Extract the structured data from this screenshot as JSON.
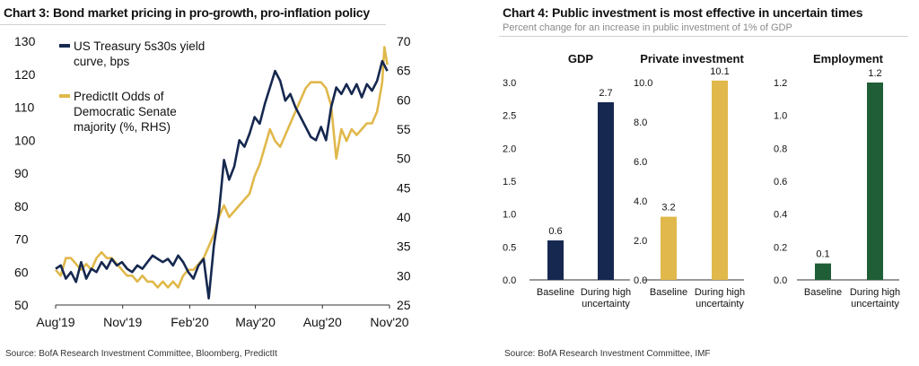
{
  "left": {
    "title": "Chart 3: Bond market pricing in pro-growth, pro-inflation policy",
    "source": "Source: BofA Research Investment Committee, Bloomberg, PredictIt"
  },
  "right": {
    "title": "Chart 4: Public investment is most effective in uncertain times",
    "subtitle": "Percent change for an increase in public investment of 1% of GDP",
    "source": "Source: BofA Research Investment Committee, IMF"
  },
  "chart_data": [
    {
      "type": "line",
      "title": "Chart 3: Bond market pricing in pro-growth, pro-inflation policy",
      "x_ticks": [
        "Aug'19",
        "Nov'19",
        "Feb'20",
        "May'20",
        "Aug'20",
        "Nov'20"
      ],
      "ylim_left": [
        50,
        130
      ],
      "ylim_right": [
        25,
        70
      ],
      "yticks_left": [
        50,
        60,
        70,
        80,
        90,
        100,
        110,
        120,
        130
      ],
      "yticks_right": [
        25,
        30,
        35,
        40,
        45,
        50,
        55,
        60,
        65,
        70
      ],
      "legend_position": "top-left",
      "grid": false,
      "series": [
        {
          "name": "US Treasury 5s30s yield curve, bps",
          "axis": "left",
          "color": "#16284f",
          "points": [
            [
              "2019-08-01",
              61
            ],
            [
              "2019-08-08",
              62
            ],
            [
              "2019-08-15",
              58
            ],
            [
              "2019-08-22",
              60
            ],
            [
              "2019-08-29",
              57
            ],
            [
              "2019-09-05",
              63
            ],
            [
              "2019-09-12",
              58
            ],
            [
              "2019-09-19",
              61
            ],
            [
              "2019-09-26",
              60
            ],
            [
              "2019-10-03",
              63
            ],
            [
              "2019-10-10",
              61
            ],
            [
              "2019-10-17",
              64
            ],
            [
              "2019-10-24",
              62
            ],
            [
              "2019-10-31",
              63
            ],
            [
              "2019-11-07",
              61
            ],
            [
              "2019-11-14",
              60
            ],
            [
              "2019-11-21",
              62
            ],
            [
              "2019-11-28",
              61
            ],
            [
              "2019-12-05",
              63
            ],
            [
              "2019-12-12",
              65
            ],
            [
              "2019-12-19",
              64
            ],
            [
              "2019-12-26",
              63
            ],
            [
              "2020-01-02",
              64
            ],
            [
              "2020-01-09",
              62
            ],
            [
              "2020-01-16",
              65
            ],
            [
              "2020-01-23",
              63
            ],
            [
              "2020-01-30",
              60
            ],
            [
              "2020-02-06",
              58
            ],
            [
              "2020-02-13",
              62
            ],
            [
              "2020-02-20",
              64
            ],
            [
              "2020-02-27",
              52
            ],
            [
              "2020-03-05",
              68
            ],
            [
              "2020-03-12",
              78
            ],
            [
              "2020-03-19",
              94
            ],
            [
              "2020-03-26",
              88
            ],
            [
              "2020-04-02",
              92
            ],
            [
              "2020-04-09",
              100
            ],
            [
              "2020-04-16",
              98
            ],
            [
              "2020-04-23",
              102
            ],
            [
              "2020-04-30",
              107
            ],
            [
              "2020-05-07",
              105
            ],
            [
              "2020-05-14",
              111
            ],
            [
              "2020-05-21",
              116
            ],
            [
              "2020-05-28",
              121
            ],
            [
              "2020-06-04",
              118
            ],
            [
              "2020-06-11",
              112
            ],
            [
              "2020-06-18",
              114
            ],
            [
              "2020-06-25",
              110
            ],
            [
              "2020-07-02",
              107
            ],
            [
              "2020-07-09",
              104
            ],
            [
              "2020-07-16",
              101
            ],
            [
              "2020-07-23",
              100
            ],
            [
              "2020-07-30",
              104
            ],
            [
              "2020-08-06",
              100
            ],
            [
              "2020-08-13",
              110
            ],
            [
              "2020-08-20",
              116
            ],
            [
              "2020-08-27",
              114
            ],
            [
              "2020-09-03",
              117
            ],
            [
              "2020-09-10",
              114
            ],
            [
              "2020-09-17",
              117
            ],
            [
              "2020-09-24",
              113
            ],
            [
              "2020-10-01",
              117
            ],
            [
              "2020-10-08",
              115
            ],
            [
              "2020-10-15",
              118
            ],
            [
              "2020-10-22",
              124
            ],
            [
              "2020-10-29",
              121
            ]
          ]
        },
        {
          "name": "PredictIt Odds of Democratic Senate majority (%, RHS)",
          "axis": "right",
          "color": "#e0b84b",
          "points": [
            [
              "2019-08-01",
              31
            ],
            [
              "2019-08-08",
              30
            ],
            [
              "2019-08-15",
              33
            ],
            [
              "2019-08-22",
              33
            ],
            [
              "2019-08-29",
              32
            ],
            [
              "2019-09-05",
              31
            ],
            [
              "2019-09-12",
              32
            ],
            [
              "2019-09-19",
              31
            ],
            [
              "2019-09-26",
              33
            ],
            [
              "2019-10-03",
              34
            ],
            [
              "2019-10-10",
              33
            ],
            [
              "2019-10-17",
              33
            ],
            [
              "2019-10-24",
              32
            ],
            [
              "2019-10-31",
              31
            ],
            [
              "2019-11-07",
              30
            ],
            [
              "2019-11-14",
              30
            ],
            [
              "2019-11-21",
              29
            ],
            [
              "2019-11-28",
              30
            ],
            [
              "2019-12-05",
              29
            ],
            [
              "2019-12-12",
              29
            ],
            [
              "2019-12-19",
              28
            ],
            [
              "2019-12-26",
              29
            ],
            [
              "2020-01-02",
              28
            ],
            [
              "2020-01-09",
              29
            ],
            [
              "2020-01-16",
              28
            ],
            [
              "2020-01-23",
              30
            ],
            [
              "2020-01-30",
              31
            ],
            [
              "2020-02-06",
              31
            ],
            [
              "2020-02-13",
              32
            ],
            [
              "2020-02-20",
              33
            ],
            [
              "2020-02-27",
              35
            ],
            [
              "2020-03-05",
              37
            ],
            [
              "2020-03-12",
              40
            ],
            [
              "2020-03-19",
              42
            ],
            [
              "2020-03-26",
              40
            ],
            [
              "2020-04-02",
              41
            ],
            [
              "2020-04-09",
              42
            ],
            [
              "2020-04-16",
              43
            ],
            [
              "2020-04-23",
              44
            ],
            [
              "2020-04-30",
              47
            ],
            [
              "2020-05-07",
              49
            ],
            [
              "2020-05-14",
              52
            ],
            [
              "2020-05-21",
              55
            ],
            [
              "2020-05-28",
              53
            ],
            [
              "2020-06-04",
              52
            ],
            [
              "2020-06-11",
              54
            ],
            [
              "2020-06-18",
              56
            ],
            [
              "2020-06-25",
              58
            ],
            [
              "2020-07-02",
              60
            ],
            [
              "2020-07-09",
              62
            ],
            [
              "2020-07-16",
              63
            ],
            [
              "2020-07-23",
              63
            ],
            [
              "2020-07-30",
              63
            ],
            [
              "2020-08-06",
              62
            ],
            [
              "2020-08-13",
              59
            ],
            [
              "2020-08-20",
              50
            ],
            [
              "2020-08-27",
              55
            ],
            [
              "2020-09-03",
              53
            ],
            [
              "2020-09-10",
              55
            ],
            [
              "2020-09-17",
              54
            ],
            [
              "2020-09-24",
              55
            ],
            [
              "2020-10-01",
              56
            ],
            [
              "2020-10-08",
              56
            ],
            [
              "2020-10-15",
              58
            ],
            [
              "2020-10-22",
              63
            ],
            [
              "2020-10-25",
              69
            ],
            [
              "2020-10-29",
              66
            ]
          ]
        }
      ]
    },
    {
      "type": "bar",
      "title": "GDP",
      "categories": [
        "Baseline",
        "During high uncertainty"
      ],
      "values": [
        0.6,
        2.7
      ],
      "ylim": [
        0,
        3.0
      ],
      "yticks": [
        "0.0",
        "0.5",
        "1.0",
        "1.5",
        "2.0",
        "2.5",
        "3.0"
      ],
      "color": "#16284f"
    },
    {
      "type": "bar",
      "title": "Private investment",
      "categories": [
        "Baseline",
        "During high uncertainty"
      ],
      "values": [
        3.2,
        10.1
      ],
      "ylim": [
        0,
        10.0
      ],
      "yticks": [
        "0.0",
        "2.0",
        "4.0",
        "6.0",
        "8.0",
        "10.0"
      ],
      "color": "#e0b84b"
    },
    {
      "type": "bar",
      "title": "Employment",
      "categories": [
        "Baseline",
        "During high uncertainty"
      ],
      "values": [
        0.1,
        1.2
      ],
      "ylim": [
        0,
        1.2
      ],
      "yticks": [
        "0.0",
        "0.2",
        "0.4",
        "0.6",
        "0.8",
        "1.0",
        "1.2"
      ],
      "color": "#1f5e37"
    }
  ]
}
